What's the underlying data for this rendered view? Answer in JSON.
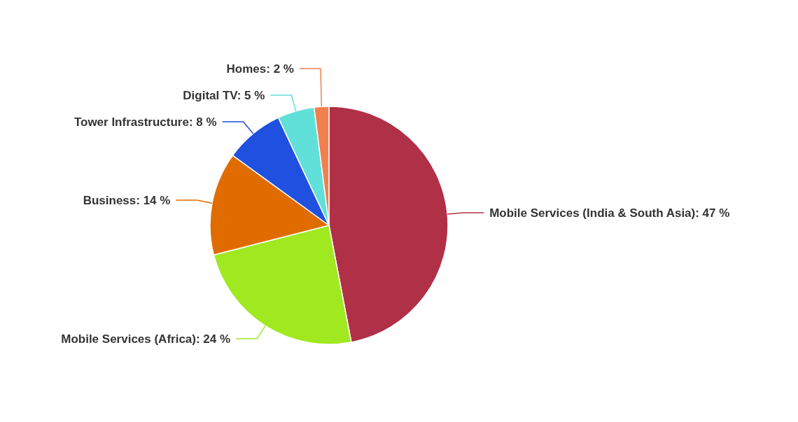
{
  "chart_data": {
    "type": "pie",
    "categories": [
      "Mobile Services (India & South Asia)",
      "Mobile Services (Africa)",
      "Business",
      "Tower Infrastructure",
      "Digital TV",
      "Homes"
    ],
    "values": [
      47,
      24,
      14,
      8,
      5,
      2
    ],
    "value_labels": [
      "47 %",
      "24 %",
      "14 %",
      "8 %",
      "5 %",
      "2 %"
    ],
    "colors": [
      "#b03048",
      "#a0e820",
      "#e06c00",
      "#2050e0",
      "#60e0d8",
      "#f08050"
    ]
  }
}
